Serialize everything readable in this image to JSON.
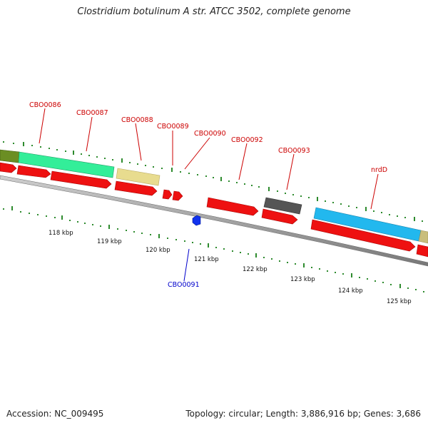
{
  "title": "Clostridium botulinum A str. ATCC 3502, complete genome",
  "footer": {
    "accession": "Accession: NC_009495",
    "summary": "Topology: circular; Length: 3,886,916 bp; Genes: 3,686"
  },
  "colors": {
    "forward_label": "#cc0000",
    "reverse_label": "#0000cc",
    "tick": "#2e8b2e",
    "backbone": "#888888"
  },
  "genes_labeled": [
    {
      "name": "CBO0086",
      "strand": "+",
      "color": "#cc0000"
    },
    {
      "name": "CBO0087",
      "strand": "+",
      "color": "#cc0000"
    },
    {
      "name": "CBO0088",
      "strand": "+",
      "color": "#cc0000"
    },
    {
      "name": "CBO0089",
      "strand": "+",
      "color": "#cc0000"
    },
    {
      "name": "CBO0090",
      "strand": "+",
      "color": "#cc0000"
    },
    {
      "name": "CBO0092",
      "strand": "+",
      "color": "#cc0000"
    },
    {
      "name": "CBO0093",
      "strand": "+",
      "color": "#cc0000"
    },
    {
      "name": "nrdD",
      "strand": "+",
      "color": "#cc0000"
    },
    {
      "name": "CBO0091",
      "strand": "-",
      "color": "#0000cc"
    }
  ],
  "kbp_labels": [
    "118 kbp",
    "119 kbp",
    "120 kbp",
    "121 kbp",
    "122 kbp",
    "123 kbp",
    "124 kbp",
    "125 kbp"
  ],
  "feature_colors": {
    "cog_olive": "#6b8e23",
    "cog_green": "#33ee99",
    "cog_khaki": "#e8dc8f",
    "cog_gray": "#555555",
    "cog_cyan": "#22b8ee",
    "cds": "#ee1111",
    "cds_reverse": "#1133ee"
  }
}
